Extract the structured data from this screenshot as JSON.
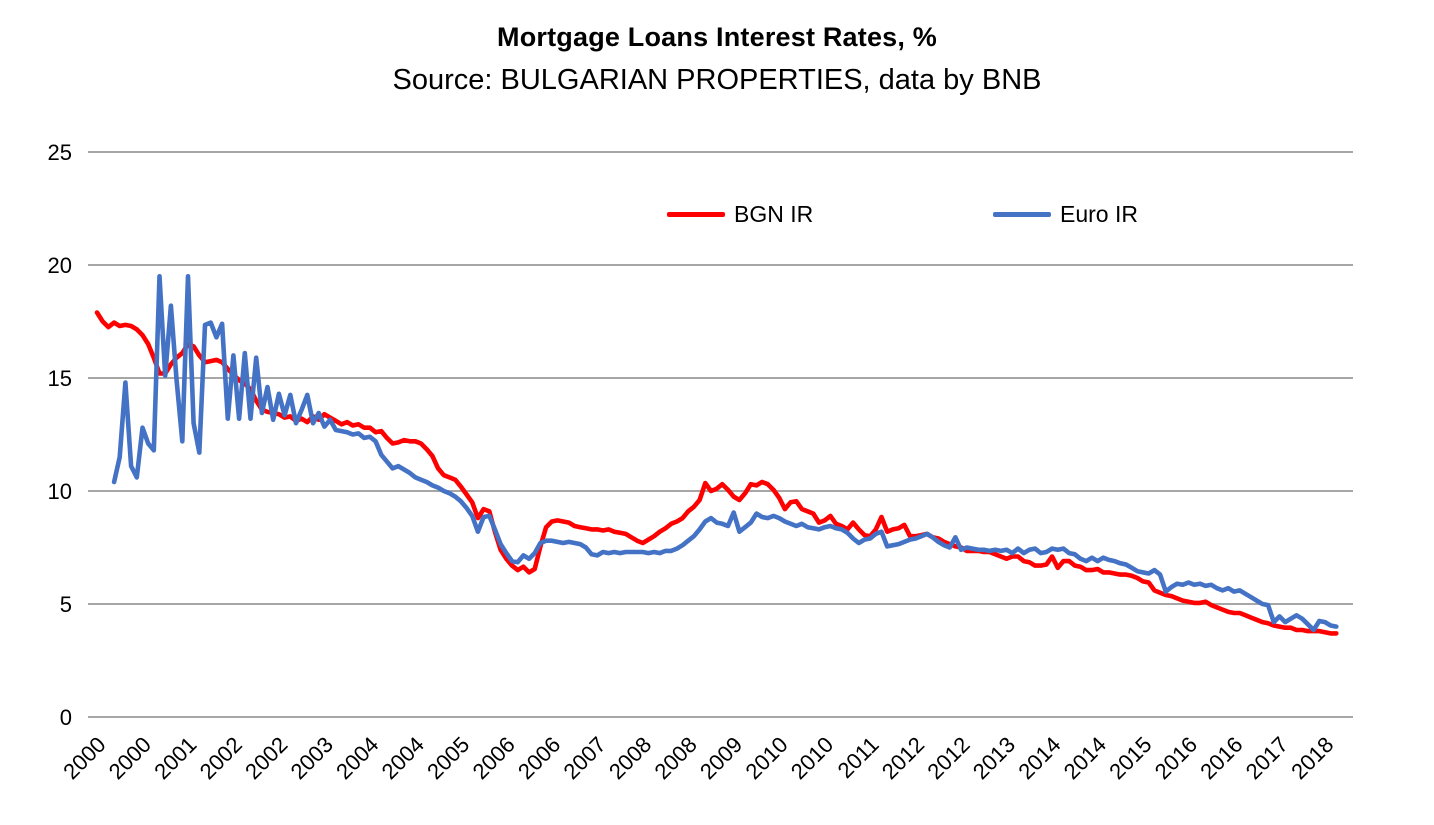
{
  "chart": {
    "title": "Mortgage Loans Interest Rates, %",
    "subtitle": "Source: BULGARIAN PROPERTIES, data by BNB"
  },
  "chart_data": {
    "type": "line",
    "title": "Mortgage Loans Interest Rates, %",
    "subtitle": "Source: BULGARIAN PROPERTIES, data by BNB",
    "frequency": "monthly",
    "x_start": "2000-01",
    "x_end": "2018-03",
    "ylim": [
      0,
      25
    ],
    "y_ticks": [
      0,
      5,
      10,
      15,
      20,
      25
    ],
    "grid": "horizontal",
    "gridline_color": "#A6A6A6",
    "legend_position": "top-center-inside",
    "x_tick_interval_months": 8,
    "x_tick_labels": [
      "2000",
      "2000",
      "2001",
      "2002",
      "2002",
      "2003",
      "2004",
      "2004",
      "2005",
      "2006",
      "2006",
      "2007",
      "2008",
      "2008",
      "2009",
      "2010",
      "2010",
      "2011",
      "2012",
      "2012",
      "2013",
      "2014",
      "2014",
      "2015",
      "2016",
      "2016",
      "2017",
      "2018"
    ],
    "series": [
      {
        "name": "BGN IR",
        "color": "#FF0000",
        "values": [
          17.9,
          17.5,
          17.25,
          17.45,
          17.3,
          17.35,
          17.3,
          17.15,
          16.9,
          16.5,
          15.9,
          15.2,
          15.2,
          15.6,
          15.9,
          16.1,
          16.5,
          16.4,
          16.0,
          15.7,
          15.75,
          15.8,
          15.7,
          15.4,
          15.15,
          14.9,
          14.75,
          14.5,
          14.0,
          13.6,
          13.5,
          13.45,
          13.4,
          13.25,
          13.3,
          13.1,
          13.2,
          13.05,
          13.3,
          13.15,
          13.4,
          13.25,
          13.1,
          12.95,
          13.05,
          12.9,
          12.95,
          12.8,
          12.8,
          12.6,
          12.65,
          12.35,
          12.1,
          12.15,
          12.25,
          12.2,
          12.2,
          12.1,
          11.85,
          11.55,
          11.0,
          10.7,
          10.6,
          10.5,
          10.2,
          9.85,
          9.5,
          8.8,
          9.2,
          9.1,
          8.2,
          7.4,
          7.0,
          6.7,
          6.5,
          6.65,
          6.4,
          6.55,
          7.55,
          8.4,
          8.65,
          8.7,
          8.65,
          8.6,
          8.45,
          8.4,
          8.35,
          8.3,
          8.3,
          8.25,
          8.3,
          8.2,
          8.15,
          8.1,
          7.95,
          7.8,
          7.7,
          7.85,
          8.0,
          8.2,
          8.35,
          8.55,
          8.65,
          8.8,
          9.1,
          9.3,
          9.6,
          10.35,
          10.0,
          10.1,
          10.3,
          10.05,
          9.75,
          9.6,
          9.9,
          10.3,
          10.25,
          10.4,
          10.3,
          10.05,
          9.7,
          9.2,
          9.5,
          9.55,
          9.2,
          9.1,
          9.0,
          8.6,
          8.7,
          8.9,
          8.55,
          8.45,
          8.3,
          8.6,
          8.3,
          8.05,
          8.0,
          8.3,
          8.85,
          8.2,
          8.3,
          8.35,
          8.5,
          8.0,
          8.0,
          8.05,
          8.1,
          7.95,
          7.9,
          7.75,
          7.65,
          7.55,
          7.5,
          7.35,
          7.35,
          7.35,
          7.3,
          7.3,
          7.2,
          7.1,
          7.0,
          7.1,
          7.1,
          6.9,
          6.85,
          6.7,
          6.7,
          6.75,
          7.1,
          6.6,
          6.9,
          6.9,
          6.7,
          6.65,
          6.5,
          6.5,
          6.55,
          6.4,
          6.4,
          6.35,
          6.3,
          6.3,
          6.25,
          6.15,
          6.0,
          5.95,
          5.6,
          5.5,
          5.4,
          5.35,
          5.25,
          5.15,
          5.1,
          5.05,
          5.05,
          5.1,
          4.95,
          4.85,
          4.75,
          4.65,
          4.6,
          4.6,
          4.5,
          4.4,
          4.3,
          4.2,
          4.15,
          4.05,
          4.0,
          3.95,
          3.95,
          3.85,
          3.85,
          3.8,
          3.8,
          3.8,
          3.75,
          3.7,
          3.7
        ]
      },
      {
        "name": "Euro IR",
        "color": "#4472C4",
        "values": [
          null,
          null,
          null,
          10.4,
          11.5,
          14.8,
          11.1,
          10.6,
          12.8,
          12.1,
          11.8,
          19.5,
          15.1,
          18.2,
          14.9,
          12.2,
          19.5,
          13.0,
          11.7,
          17.35,
          17.45,
          16.8,
          17.4,
          13.2,
          16.0,
          13.2,
          16.1,
          13.2,
          15.9,
          13.45,
          14.6,
          13.15,
          14.3,
          13.35,
          14.25,
          13.0,
          13.6,
          14.25,
          13.0,
          13.45,
          12.85,
          13.15,
          12.7,
          12.65,
          12.6,
          12.5,
          12.55,
          12.35,
          12.4,
          12.2,
          11.6,
          11.3,
          11.0,
          11.1,
          10.95,
          10.8,
          10.6,
          10.5,
          10.4,
          10.25,
          10.15,
          10.0,
          9.9,
          9.75,
          9.55,
          9.25,
          8.9,
          8.2,
          8.85,
          8.9,
          8.3,
          7.65,
          7.25,
          6.9,
          6.85,
          7.15,
          7.0,
          7.25,
          7.7,
          7.8,
          7.8,
          7.75,
          7.7,
          7.75,
          7.7,
          7.65,
          7.5,
          7.2,
          7.15,
          7.3,
          7.25,
          7.3,
          7.25,
          7.3,
          7.3,
          7.3,
          7.3,
          7.25,
          7.3,
          7.25,
          7.35,
          7.35,
          7.45,
          7.6,
          7.8,
          8.0,
          8.3,
          8.65,
          8.8,
          8.6,
          8.55,
          8.45,
          9.05,
          8.2,
          8.4,
          8.6,
          9.0,
          8.85,
          8.8,
          8.9,
          8.8,
          8.65,
          8.55,
          8.45,
          8.55,
          8.4,
          8.35,
          8.3,
          8.4,
          8.45,
          8.35,
          8.3,
          8.15,
          7.9,
          7.7,
          7.85,
          7.9,
          8.1,
          8.2,
          7.55,
          7.6,
          7.65,
          7.75,
          7.85,
          7.9,
          8.0,
          8.1,
          7.95,
          7.75,
          7.6,
          7.5,
          7.95,
          7.4,
          7.5,
          7.45,
          7.4,
          7.4,
          7.35,
          7.4,
          7.35,
          7.4,
          7.25,
          7.45,
          7.25,
          7.4,
          7.45,
          7.25,
          7.3,
          7.45,
          7.4,
          7.45,
          7.25,
          7.2,
          7.0,
          6.9,
          7.05,
          6.9,
          7.05,
          6.95,
          6.9,
          6.8,
          6.75,
          6.6,
          6.45,
          6.4,
          6.35,
          6.5,
          6.3,
          5.55,
          5.75,
          5.9,
          5.85,
          5.95,
          5.85,
          5.9,
          5.8,
          5.85,
          5.7,
          5.6,
          5.7,
          5.55,
          5.6,
          5.45,
          5.3,
          5.15,
          5.0,
          4.95,
          4.2,
          4.45,
          4.2,
          4.35,
          4.5,
          4.35,
          4.1,
          3.85,
          4.25,
          4.2,
          4.05,
          4.0
        ]
      }
    ]
  }
}
